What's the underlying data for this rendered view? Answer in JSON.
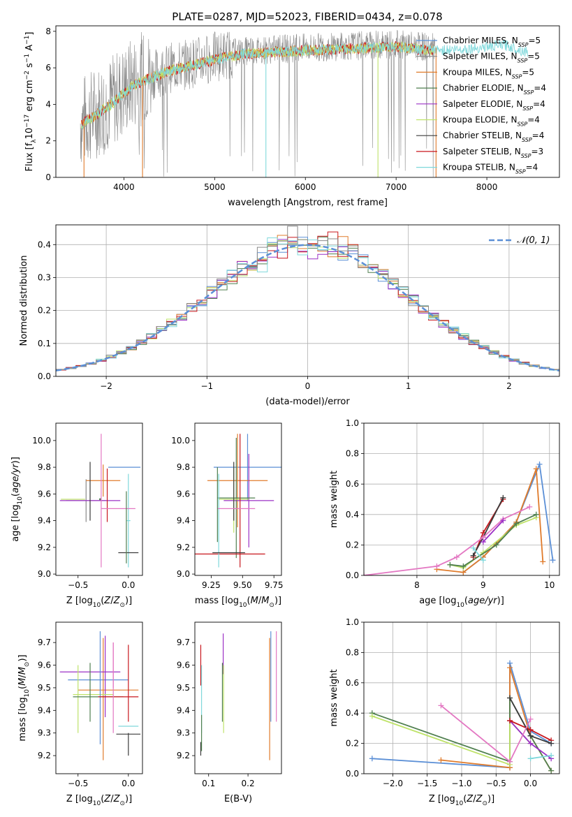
{
  "title": "PLATE=0287, MJD=52023, FIBERID=0434, z=0.078",
  "colors": {
    "Chabrier MILES": "#5b8fd6",
    "Salpeter MILES": "#8a8a8a",
    "Kroupa MILES": "#e07b2b",
    "Chabrier ELODIE": "#4f7f4f",
    "Salpeter ELODIE": "#9b30c6",
    "Kroupa ELODIE": "#bfe36a",
    "Chabrier STELIB": "#3b3b3b",
    "Salpeter STELIB": "#c8171d",
    "Kroupa STELIB": "#7fd8db",
    "gaussian": "#5b8fd6",
    "grid": "#b0b0b0",
    "extra_pink": "#e377c2",
    "extra_green": "#6ab04c"
  },
  "chart_data": [
    {
      "id": "spectrum",
      "type": "line",
      "title": "PLATE=0287, MJD=52023, FIBERID=0434, z=0.078",
      "xlabel": "wavelength [Angstrom, rest frame]",
      "ylabel": "Flux [f_λ 10^-17 erg cm^-2 s^-1 A^-1]",
      "xlim": [
        3250,
        8800
      ],
      "ylim": [
        0,
        8.3
      ],
      "xticks": [
        "4000",
        "5000",
        "6000",
        "7000",
        "8000"
      ],
      "yticks": [
        "0",
        "2",
        "4",
        "6",
        "8"
      ],
      "legend_position": "right",
      "legend": [
        {
          "label": "Chabrier MILES, N_SSP=5",
          "series": "Chabrier MILES"
        },
        {
          "label": "Salpeter MILES, N_SSP=5",
          "series": "Salpeter MILES"
        },
        {
          "label": "Kroupa MILES, N_SSP=5",
          "series": "Kroupa MILES"
        },
        {
          "label": "Chabrier ELODIE, N_SSP=4",
          "series": "Chabrier ELODIE"
        },
        {
          "label": "Salpeter ELODIE, N_SSP=4",
          "series": "Salpeter ELODIE"
        },
        {
          "label": "Kroupa ELODIE, N_SSP=4",
          "series": "Kroupa ELODIE"
        },
        {
          "label": "Chabrier STELIB, N_SSP=4",
          "series": "Chabrier STELIB"
        },
        {
          "label": "Salpeter STELIB, N_SSP=3",
          "series": "Salpeter STELIB"
        },
        {
          "label": "Kroupa STELIB, N_SSP=4",
          "series": "Kroupa STELIB"
        }
      ],
      "continuum": [
        [
          3520,
          3.0
        ],
        [
          3700,
          3.6
        ],
        [
          3900,
          4.3
        ],
        [
          4100,
          5.2
        ],
        [
          4300,
          5.6
        ],
        [
          4500,
          6.0
        ],
        [
          4700,
          6.2
        ],
        [
          5000,
          6.6
        ],
        [
          5300,
          6.9
        ],
        [
          5600,
          7.0
        ],
        [
          6000,
          7.1
        ],
        [
          6500,
          7.2
        ],
        [
          7000,
          7.3
        ],
        [
          7400,
          7.1
        ],
        [
          7800,
          7.2
        ],
        [
          8200,
          7.4
        ],
        [
          8450,
          7.0
        ]
      ]
    },
    {
      "id": "residuals",
      "type": "histogram",
      "xlabel": "(data-model)/error",
      "ylabel": "Normed distribution",
      "xlim": [
        -2.5,
        2.5
      ],
      "ylim": [
        0,
        0.46
      ],
      "xticks": [
        "−2",
        "−1",
        "0",
        "1",
        "2"
      ],
      "yticks": [
        "0.0",
        "0.1",
        "0.2",
        "0.3",
        "0.4"
      ],
      "legend_position": "top-right",
      "gaussian_label": "𝒩(0, 1)",
      "gaussian": {
        "mean": 0,
        "sigma": 1
      }
    },
    {
      "id": "age_vs_Z",
      "type": "errorbar",
      "xlabel": "Z [log10(Z/Z⊙)]",
      "ylabel": "age [log10(age/yr)]",
      "xlim": [
        -0.72,
        0.14
      ],
      "ylim": [
        8.99,
        10.13
      ],
      "xticks": [
        "−0.5",
        "0.0"
      ],
      "yticks": [
        "9.0",
        "9.2",
        "9.4",
        "9.6",
        "9.8",
        "10.0"
      ],
      "points": [
        {
          "series": "Chabrier MILES",
          "x": -0.04,
          "xerr": 0.16,
          "y": 9.8,
          "yerr": 0.0
        },
        {
          "series": "Salpeter MILES",
          "x": -0.42,
          "xerr": 0.2,
          "y": 9.55,
          "yerr": 0.16
        },
        {
          "series": "Kroupa MILES",
          "x": -0.25,
          "xerr": 0.17,
          "y": 9.7,
          "yerr": 0.12
        },
        {
          "series": "Chabrier ELODIE",
          "x": -0.28,
          "xerr": 0.0,
          "y": 9.56,
          "yerr": 0.0
        },
        {
          "series": "Salpeter ELODIE",
          "x": -0.38,
          "xerr": 0.3,
          "y": 9.55,
          "yerr": 0.0
        },
        {
          "series": "Kroupa ELODIE",
          "x": -0.55,
          "xerr": 0.12,
          "y": 9.56,
          "yerr": 0.0
        },
        {
          "series": "Chabrier STELIB",
          "x": -0.38,
          "xerr": 0.0,
          "y": 9.62,
          "yerr": 0.22
        },
        {
          "series": "Salpeter STELIB",
          "x": -0.21,
          "xerr": 0.0,
          "y": 9.59,
          "yerr": 0.2
        },
        {
          "series": "Kroupa STELIB",
          "x": 0.0,
          "xerr": 0.02,
          "y": 9.4,
          "yerr": 0.35
        },
        {
          "series": "extra_pink",
          "x": -0.27,
          "xerr": 0.0,
          "y": 9.55,
          "yerr": 0.5
        },
        {
          "series": "extra_pink",
          "x": -0.1,
          "xerr": 0.17,
          "y": 9.49,
          "yerr": 0.0
        },
        {
          "series": "Chabrier STELIB",
          "x": 0.0,
          "xerr": 0.1,
          "y": 9.16,
          "yerr": 0.0
        },
        {
          "series": "Chabrier ELODIE",
          "x": -0.02,
          "xerr": 0.0,
          "y": 9.35,
          "yerr": 0.27
        }
      ]
    },
    {
      "id": "age_vs_mass",
      "type": "errorbar",
      "xlabel": "mass [log10(M/M⊙)]",
      "ylabel": "",
      "xlim": [
        9.12,
        9.81
      ],
      "ylim": [
        8.99,
        10.13
      ],
      "xticks": [
        "9.25",
        "9.50",
        "9.75"
      ],
      "yticks": [
        "9.0",
        "9.2",
        "9.4",
        "9.6",
        "9.8",
        "10.0"
      ],
      "points": [
        {
          "series": "Chabrier MILES",
          "x": 9.54,
          "xerr": 0.27,
          "y": 9.8,
          "yerr": 0.25
        },
        {
          "series": "Kroupa MILES",
          "x": 9.46,
          "xerr": 0.24,
          "y": 9.7,
          "yerr": 0.35
        },
        {
          "series": "Salpeter ELODIE",
          "x": 9.55,
          "xerr": 0.2,
          "y": 9.55,
          "yerr": 0.35
        },
        {
          "series": "Chabrier ELODIE",
          "x": 9.45,
          "xerr": 0.15,
          "y": 9.57,
          "yerr": 0.45
        },
        {
          "series": "Kroupa ELODIE",
          "x": 9.43,
          "xerr": 0.12,
          "y": 9.56,
          "yerr": 0.25
        },
        {
          "series": "Chabrier STELIB",
          "x": 9.43,
          "xerr": 0.0,
          "y": 9.62,
          "yerr": 0.22
        },
        {
          "series": "Salpeter STELIB",
          "x": 9.38,
          "xerr": 0.3,
          "y": 9.15,
          "yerr": 0.0
        },
        {
          "series": "Salpeter STELIB",
          "x": 9.48,
          "xerr": 0.0,
          "y": 9.55,
          "yerr": 0.5
        },
        {
          "series": "Kroupa STELIB",
          "x": 9.31,
          "xerr": 0.0,
          "y": 9.4,
          "yerr": 0.35
        },
        {
          "series": "extra_pink",
          "x": 9.45,
          "xerr": 0.15,
          "y": 9.49,
          "yerr": 0.0
        },
        {
          "series": "Chabrier STELIB",
          "x": 9.39,
          "xerr": 0.13,
          "y": 9.16,
          "yerr": 0.0
        },
        {
          "series": "Chabrier ELODIE",
          "x": 9.3,
          "xerr": 0.0,
          "y": 9.52,
          "yerr": 0.28
        }
      ]
    },
    {
      "id": "mass_weight_vs_age",
      "type": "line",
      "xlabel": "age [log10(age/yr)]",
      "ylabel": "mass weight",
      "xlim": [
        7.2,
        10.15
      ],
      "ylim": [
        0,
        1.0
      ],
      "xticks": [
        "8",
        "9",
        "10"
      ],
      "yticks": [
        "0.0",
        "0.2",
        "0.4",
        "0.6",
        "0.8",
        "1.0"
      ],
      "grid": true,
      "series": [
        {
          "name": "Chabrier MILES",
          "x": [
            8.7,
            9.0,
            9.5,
            9.85,
            10.05
          ],
          "y": [
            0.02,
            0.12,
            0.35,
            0.73,
            0.1
          ]
        },
        {
          "name": "Kroupa MILES",
          "x": [
            8.3,
            8.7,
            9.0,
            9.5,
            9.8,
            9.9
          ],
          "y": [
            0.04,
            0.02,
            0.12,
            0.35,
            0.7,
            0.09
          ]
        },
        {
          "name": "Kroupa ELODIE",
          "x": [
            8.5,
            8.7,
            9.0,
            9.5,
            9.8
          ],
          "y": [
            0.07,
            0.05,
            0.15,
            0.33,
            0.38
          ]
        },
        {
          "name": "Chabrier ELODIE",
          "x": [
            8.5,
            8.7,
            9.2,
            9.5,
            9.8
          ],
          "y": [
            0.07,
            0.06,
            0.2,
            0.34,
            0.4
          ]
        },
        {
          "name": "Salpeter STELIB",
          "x": [
            8.85,
            9.0,
            9.3
          ],
          "y": [
            0.12,
            0.28,
            0.5
          ]
        },
        {
          "name": "Chabrier STELIB",
          "x": [
            8.85,
            9.0,
            9.3
          ],
          "y": [
            0.13,
            0.25,
            0.51
          ]
        },
        {
          "name": "extra_pink",
          "x": [
            7.2,
            8.3,
            8.6,
            9.0,
            9.3,
            9.7
          ],
          "y": [
            0.0,
            0.06,
            0.12,
            0.25,
            0.37,
            0.45
          ]
        },
        {
          "name": "Kroupa STELIB",
          "x": [
            8.85,
            9.0
          ],
          "y": [
            0.18,
            0.1
          ]
        },
        {
          "name": "Salpeter ELODIE",
          "x": [
            9.0,
            9.3
          ],
          "y": [
            0.22,
            0.36
          ]
        }
      ]
    },
    {
      "id": "mass_vs_Z",
      "type": "errorbar",
      "xlabel": "Z [log10(Z/Z⊙)]",
      "ylabel": "mass [log10(M/M⊙)]",
      "xlim": [
        -0.72,
        0.14
      ],
      "ylim": [
        9.12,
        9.79
      ],
      "xticks": [
        "−0.5",
        "0.0"
      ],
      "yticks": [
        "9.2",
        "9.3",
        "9.4",
        "9.5",
        "9.6",
        "9.7"
      ],
      "points": [
        {
          "series": "Chabrier MILES",
          "x": -0.3,
          "xerr": 0.3,
          "y": 9.535,
          "yerr": 0.0
        },
        {
          "series": "Kroupa MILES",
          "x": -0.2,
          "xerr": 0.3,
          "y": 9.49,
          "yerr": 0.0
        },
        {
          "series": "Kroupa MILES",
          "x": -0.25,
          "xerr": 0.0,
          "y": 9.45,
          "yerr": 0.27
        },
        {
          "series": "Salpeter ELODIE",
          "x": -0.38,
          "xerr": 0.3,
          "y": 9.57,
          "yerr": 0.0
        },
        {
          "series": "Salpeter ELODIE",
          "x": -0.23,
          "xerr": 0.0,
          "y": 9.55,
          "yerr": 0.18
        },
        {
          "series": "Kroupa ELODIE",
          "x": -0.35,
          "xerr": 0.2,
          "y": 9.47,
          "yerr": 0.0
        },
        {
          "series": "Kroupa ELODIE",
          "x": -0.5,
          "xerr": 0.0,
          "y": 9.45,
          "yerr": 0.15
        },
        {
          "series": "Chabrier ELODIE",
          "x": -0.3,
          "xerr": 0.25,
          "y": 9.46,
          "yerr": 0.0
        },
        {
          "series": "Chabrier ELODIE",
          "x": -0.38,
          "xerr": 0.0,
          "y": 9.48,
          "yerr": 0.13
        },
        {
          "series": "Chabrier MILES",
          "x": -0.28,
          "xerr": 0.0,
          "y": 9.5,
          "yerr": 0.25
        },
        {
          "series": "Salpeter STELIB",
          "x": 0.0,
          "xerr": 0.0,
          "y": 9.52,
          "yerr": 0.17
        },
        {
          "series": "Salpeter STELIB",
          "x": -0.1,
          "xerr": 0.2,
          "y": 9.46,
          "yerr": 0.0
        },
        {
          "series": "Kroupa STELIB",
          "x": 0.0,
          "xerr": 0.1,
          "y": 9.33,
          "yerr": 0.0
        },
        {
          "series": "Chabrier STELIB",
          "x": 0.0,
          "xerr": 0.12,
          "y": 9.295,
          "yerr": 0.0
        },
        {
          "series": "Chabrier STELIB",
          "x": 0.0,
          "xerr": 0.0,
          "y": 9.25,
          "yerr": 0.05
        },
        {
          "series": "extra_pink",
          "x": -0.15,
          "xerr": 0.0,
          "y": 9.5,
          "yerr": 0.2
        },
        {
          "series": "extra_pink",
          "x": -0.15,
          "xerr": 0.0,
          "y": 9.6,
          "yerr": 0.1
        }
      ]
    },
    {
      "id": "mass_vs_ebv",
      "type": "errorbar",
      "xlabel": "E(B-V)",
      "ylabel": "",
      "xlim": [
        0.065,
        0.285
      ],
      "ylim": [
        9.12,
        9.79
      ],
      "xticks": [
        "0.1",
        "0.2"
      ],
      "yticks": [
        "9.2",
        "9.3",
        "9.4",
        "9.5",
        "9.6",
        "9.7"
      ],
      "points": [
        {
          "series": "Chabrier STELIB",
          "x": 0.08,
          "xerr": 0.0,
          "y": 9.23,
          "yerr": 0.03
        },
        {
          "series": "Salpeter STELIB",
          "x": 0.08,
          "xerr": 0.0,
          "y": 9.6,
          "yerr": 0.09
        },
        {
          "series": "Kroupa STELIB",
          "x": 0.082,
          "xerr": 0.0,
          "y": 9.45,
          "yerr": 0.15
        },
        {
          "series": "Chabrier ELODIE",
          "x": 0.082,
          "xerr": 0.0,
          "y": 9.3,
          "yerr": 0.08
        },
        {
          "series": "Salpeter ELODIE",
          "x": 0.137,
          "xerr": 0.0,
          "y": 9.65,
          "yerr": 0.09
        },
        {
          "series": "Chabrier ELODIE",
          "x": 0.135,
          "xerr": 0.0,
          "y": 9.48,
          "yerr": 0.13
        },
        {
          "series": "Kroupa ELODIE",
          "x": 0.138,
          "xerr": 0.0,
          "y": 9.45,
          "yerr": 0.15
        },
        {
          "series": "Chabrier MILES",
          "x": 0.258,
          "xerr": 0.0,
          "y": 9.55,
          "yerr": 0.2
        },
        {
          "series": "Kroupa MILES",
          "x": 0.255,
          "xerr": 0.0,
          "y": 9.45,
          "yerr": 0.27
        },
        {
          "series": "extra_pink",
          "x": 0.272,
          "xerr": 0.0,
          "y": 9.55,
          "yerr": 0.2
        }
      ]
    },
    {
      "id": "mass_weight_vs_Z",
      "type": "line",
      "xlabel": "Z [log10(Z/Z⊙)]",
      "ylabel": "mass weight",
      "xlim": [
        -2.42,
        0.42
      ],
      "ylim": [
        0,
        1.0
      ],
      "xticks": [
        "−2.0",
        "−1.5",
        "−1.0",
        "−0.5",
        "0.0"
      ],
      "yticks": [
        "0.0",
        "0.2",
        "0.4",
        "0.6",
        "0.8",
        "1.0"
      ],
      "grid": true,
      "series": [
        {
          "name": "Chabrier MILES",
          "x": [
            -2.3,
            -0.3,
            -0.3,
            0.0,
            0.3
          ],
          "y": [
            0.1,
            0.04,
            0.73,
            0.28,
            0.2
          ]
        },
        {
          "name": "Kroupa MILES",
          "x": [
            -1.3,
            -0.3,
            -0.3,
            0.0,
            0.3
          ],
          "y": [
            0.09,
            0.04,
            0.7,
            0.25,
            0.02
          ]
        },
        {
          "name": "Chabrier ELODIE",
          "x": [
            -2.3,
            -0.3,
            -0.3,
            0.0,
            0.3
          ],
          "y": [
            0.4,
            0.08,
            0.5,
            0.25,
            0.02
          ]
        },
        {
          "name": "Kroupa ELODIE",
          "x": [
            -2.3,
            -0.3,
            -0.3,
            0.0
          ],
          "y": [
            0.38,
            0.06,
            0.35,
            0.2
          ]
        },
        {
          "name": "Salpeter ELODIE",
          "x": [
            -0.3,
            0.0,
            0.3
          ],
          "y": [
            0.35,
            0.2,
            0.1
          ]
        },
        {
          "name": "Salpeter STELIB",
          "x": [
            -0.3,
            0.0,
            0.3
          ],
          "y": [
            0.35,
            0.29,
            0.22
          ]
        },
        {
          "name": "Chabrier STELIB",
          "x": [
            -0.3,
            0.0,
            0.3
          ],
          "y": [
            0.5,
            0.25,
            0.2
          ]
        },
        {
          "name": "extra_pink",
          "x": [
            -1.3,
            -0.3,
            0.0
          ],
          "y": [
            0.45,
            0.08,
            0.36
          ]
        },
        {
          "name": "Kroupa STELIB",
          "x": [
            0.0,
            0.3
          ],
          "y": [
            0.1,
            0.12
          ]
        }
      ]
    }
  ]
}
